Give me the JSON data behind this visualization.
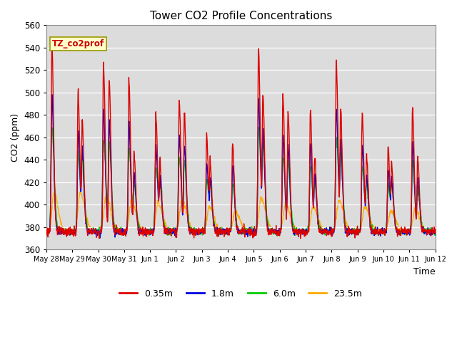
{
  "title": "Tower CO2 Profile Concentrations",
  "xlabel": "Time",
  "ylabel": "CO2 (ppm)",
  "ylim": [
    360,
    560
  ],
  "annotation": "TZ_co2prof",
  "bg_color": "#dcdcdc",
  "lines": {
    "0.35m": {
      "color": "#dd0000",
      "lw": 1.0
    },
    "1.8m": {
      "color": "#0000dd",
      "lw": 1.0
    },
    "6.0m": {
      "color": "#00cc00",
      "lw": 1.0
    },
    "23.5m": {
      "color": "#ffaa00",
      "lw": 1.0
    }
  },
  "xtick_labels": [
    "May 28",
    "May 29",
    "May 30",
    "May 31",
    "Jun 1",
    "Jun 2",
    "Jun 3",
    "Jun 4",
    "Jun 5",
    "Jun 6",
    "Jun 7",
    "Jun 8",
    "Jun 9",
    "Jun 10",
    "Jun 11",
    "Jun 12"
  ],
  "ytick_values": [
    360,
    380,
    400,
    420,
    440,
    460,
    480,
    500,
    520,
    540,
    560
  ]
}
